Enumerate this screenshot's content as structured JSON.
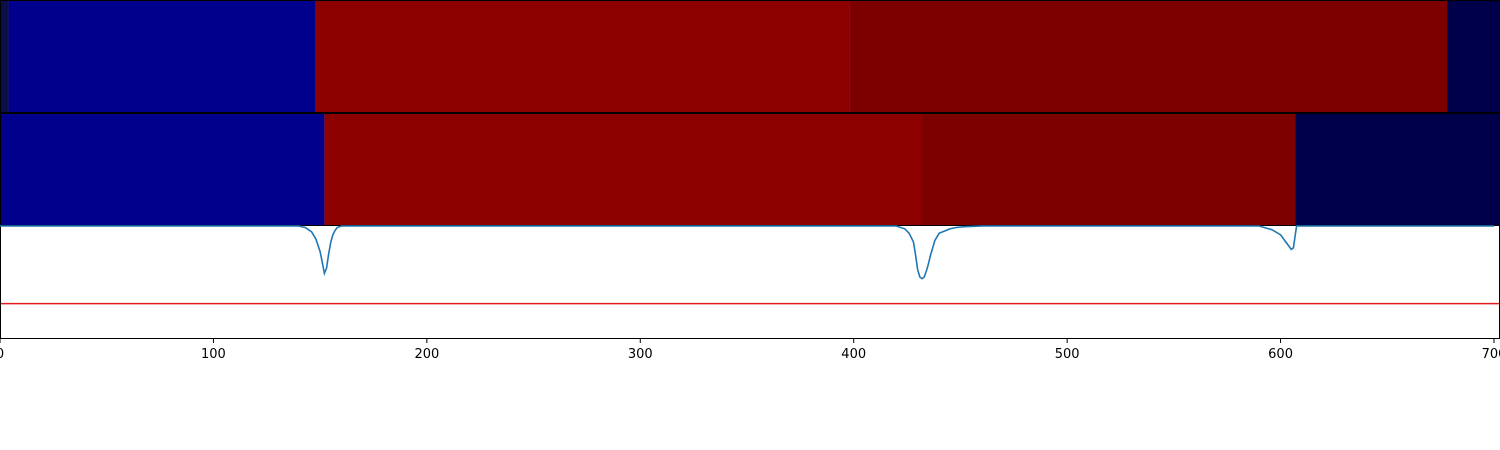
{
  "chart_data": {
    "type": "heatmap",
    "xlim": [
      0,
      700
    ],
    "xticks": [
      0,
      100,
      200,
      300,
      400,
      500,
      600,
      700
    ],
    "segment_tracks": [
      {
        "segments": [
          {
            "start": 0,
            "end": 4,
            "color": "#0a0f45"
          },
          {
            "start": 4,
            "end": 148,
            "color": "#00008c"
          },
          {
            "start": 148,
            "end": 398,
            "color": "#8c0000"
          },
          {
            "start": 398,
            "end": 678,
            "color": "#7c0000"
          },
          {
            "start": 678,
            "end": 703,
            "color": "#00004a"
          }
        ]
      },
      {
        "segments": [
          {
            "start": 0,
            "end": 152,
            "color": "#00008c"
          },
          {
            "start": 152,
            "end": 432,
            "color": "#8c0000"
          },
          {
            "start": 432,
            "end": 607,
            "color": "#7c0000"
          },
          {
            "start": 607,
            "end": 703,
            "color": "#00004a"
          }
        ]
      }
    ],
    "signal": {
      "color": "#1f77b4",
      "ylim": [
        -1.0,
        0.0
      ],
      "threshold": {
        "value": -1.45,
        "color": "#e31a1c"
      },
      "x": [
        0,
        140,
        143,
        146,
        148,
        150,
        151,
        152,
        153,
        154,
        155,
        156,
        157,
        158,
        160,
        400,
        420,
        424,
        426,
        428,
        429,
        430,
        431,
        432,
        433,
        434,
        435,
        436,
        437,
        438,
        440,
        445,
        448,
        452,
        460,
        590,
        596,
        600,
        602,
        604,
        605,
        606,
        607,
        607.5,
        640,
        660,
        700
      ],
      "y": [
        0.02,
        0.02,
        -0.02,
        -0.08,
        -0.18,
        -0.35,
        -0.5,
        -0.65,
        -0.58,
        -0.38,
        -0.22,
        -0.12,
        -0.06,
        -0.02,
        0.02,
        0.02,
        0.0,
        -0.04,
        -0.1,
        -0.22,
        -0.4,
        -0.6,
        -0.7,
        -0.72,
        -0.7,
        -0.62,
        -0.52,
        -0.4,
        -0.3,
        -0.2,
        -0.1,
        -0.04,
        -0.02,
        -0.01,
        0.02,
        0.02,
        -0.05,
        -0.12,
        -0.2,
        -0.28,
        -0.32,
        -0.3,
        -0.1,
        0.02,
        0.0,
        0.0,
        0.0
      ]
    }
  }
}
